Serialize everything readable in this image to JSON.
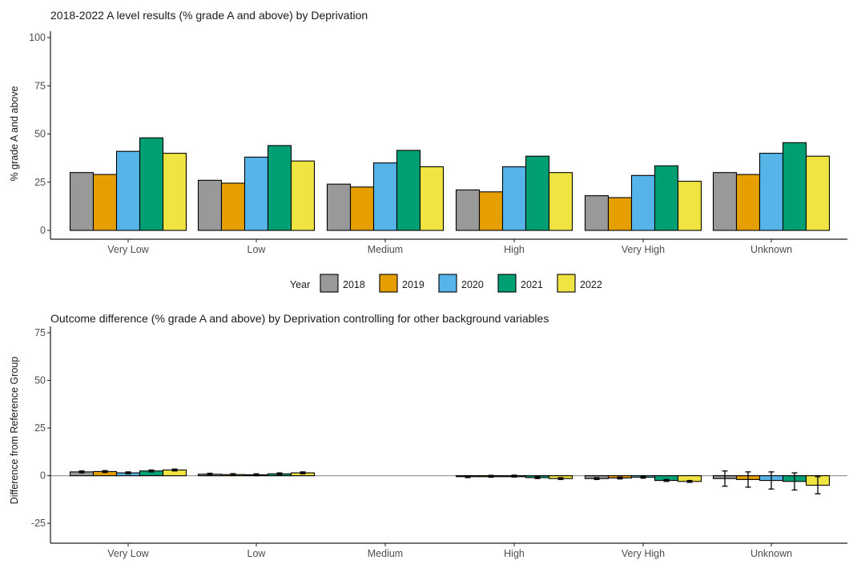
{
  "chart_data": [
    {
      "type": "bar",
      "title": "2018-2022 A level results (% grade A and above) by Deprivation",
      "xlabel": "",
      "ylabel": "% grade A and above",
      "categories": [
        "Very Low",
        "Low",
        "Medium",
        "High",
        "Very High",
        "Unknown"
      ],
      "ylim": [
        0,
        100
      ],
      "yticks": [
        0,
        25,
        50,
        75,
        100
      ],
      "grid": false,
      "series": [
        {
          "name": "2018",
          "values": [
            30,
            26,
            24,
            21,
            18,
            30
          ]
        },
        {
          "name": "2019",
          "values": [
            29,
            24.5,
            22.5,
            20,
            17,
            29
          ]
        },
        {
          "name": "2020",
          "values": [
            41,
            38,
            35,
            33,
            28.5,
            40
          ]
        },
        {
          "name": "2021",
          "values": [
            48,
            44,
            41.5,
            38.5,
            33.5,
            45.5
          ]
        },
        {
          "name": "2022",
          "values": [
            40,
            36,
            33,
            30,
            25.5,
            38.5
          ]
        }
      ]
    },
    {
      "type": "bar",
      "title": "Outcome difference (% grade A and above) by Deprivation controlling for other background variables",
      "xlabel": "",
      "ylabel": "Difference from Reference Group",
      "categories": [
        "Very Low",
        "Low",
        "Medium",
        "High",
        "Very High",
        "Unknown"
      ],
      "ylim": [
        -35,
        75
      ],
      "yticks": [
        -25,
        0,
        25,
        50,
        75
      ],
      "reference_line": 0,
      "grid": false,
      "series": [
        {
          "name": "2018",
          "values": [
            2,
            0.8,
            null,
            -0.5,
            -1.5,
            -1.5
          ],
          "error": [
            0.5,
            0.5,
            null,
            0.5,
            0.5,
            4
          ]
        },
        {
          "name": "2019",
          "values": [
            2.2,
            0.6,
            null,
            -0.3,
            -1.2,
            -2
          ],
          "error": [
            0.5,
            0.5,
            null,
            0.5,
            0.5,
            4
          ]
        },
        {
          "name": "2020",
          "values": [
            1.5,
            0.5,
            null,
            -0.2,
            -0.8,
            -2.5
          ],
          "error": [
            0.5,
            0.5,
            null,
            0.5,
            0.5,
            4.5
          ]
        },
        {
          "name": "2021",
          "values": [
            2.5,
            1,
            null,
            -1,
            -2.5,
            -3
          ],
          "error": [
            0.5,
            0.5,
            null,
            0.5,
            0.5,
            4.5
          ]
        },
        {
          "name": "2022",
          "values": [
            3,
            1.5,
            null,
            -1.5,
            -3,
            -5
          ],
          "error": [
            0.5,
            0.5,
            null,
            0.5,
            0.5,
            4.5
          ]
        }
      ]
    }
  ],
  "legend": {
    "title": "Year",
    "placement": "center, between panels",
    "items": [
      "2018",
      "2019",
      "2020",
      "2021",
      "2022"
    ]
  },
  "colors": {
    "2018": "#999999",
    "2019": "#E69F00",
    "2020": "#56B4E9",
    "2021": "#009E73",
    "2022": "#F0E442",
    "bar_outline": "#000000",
    "axis": "#1a1a1a",
    "reference_line": "#999999"
  }
}
